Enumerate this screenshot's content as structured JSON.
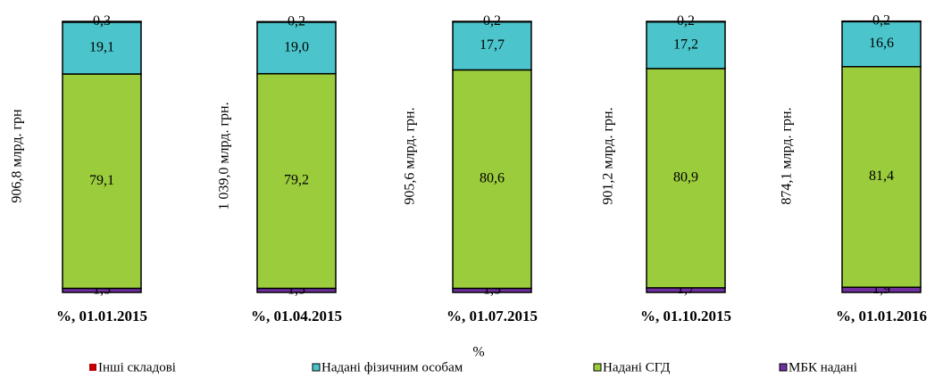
{
  "chart_data": {
    "type": "stacked_bar",
    "categories": [
      "%, 01.01.2015",
      "%, 01.04.2015",
      "%, 01.07.2015",
      "%, 01.10.2015",
      "%, 01.01.2016"
    ],
    "x_label": "%",
    "bar_labels": [
      "906,8 млрд. грн",
      "1 039,0 млрд. грн.",
      "905,6 млрд. грн.",
      "901,2 млрд. грн.",
      "874,1 млрд. грн."
    ],
    "ylim": [
      0,
      100
    ],
    "series": [
      {
        "name": "Інші складові",
        "color": "#c00000",
        "values": [
          0.3,
          0.2,
          0.2,
          0.2,
          0.2
        ],
        "value_labels": [
          "0,3",
          "0,2",
          "0,2",
          "0,2",
          "0,2"
        ]
      },
      {
        "name": "Надані фізичним особам",
        "color": "#4bc5cb",
        "values": [
          19.1,
          19.0,
          17.7,
          17.2,
          16.6
        ],
        "value_labels": [
          "19,1",
          "19,0",
          "17,7",
          "17,2",
          "16,6"
        ]
      },
      {
        "name": "Надані СГД",
        "color": "#9bcc3c",
        "values": [
          79.1,
          79.2,
          80.6,
          80.9,
          81.4
        ],
        "value_labels": [
          "79,1",
          "79,2",
          "80,6",
          "80,9",
          "81,4"
        ]
      },
      {
        "name": "МБК надані",
        "color": "#7030a0",
        "values": [
          1.5,
          1.5,
          1.5,
          1.7,
          1.9
        ],
        "value_labels": [
          "1,5",
          "1,5",
          "1,5",
          "1,7",
          "1,9"
        ]
      }
    ]
  }
}
